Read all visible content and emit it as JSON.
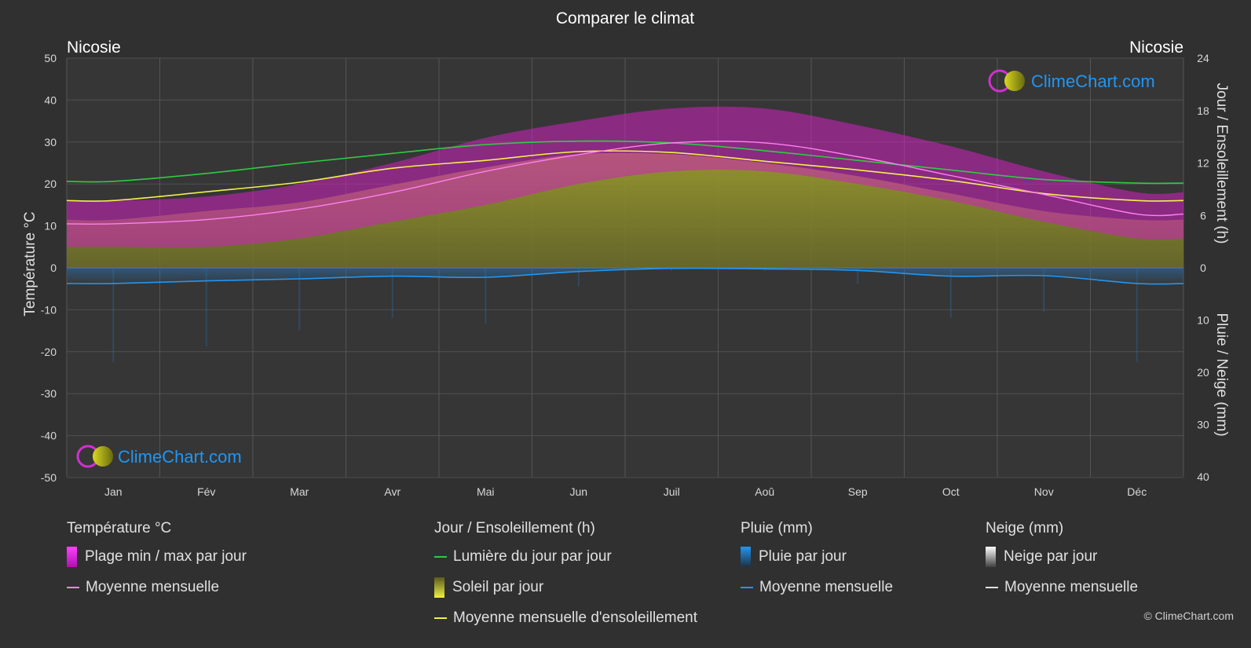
{
  "header": {
    "title": "Comparer le climat",
    "left_location": "Nicosie",
    "right_location": "Nicosie"
  },
  "logo_text": "ClimeChart.com",
  "copyright": "© ClimeChart.com",
  "colors": {
    "background": "#303030",
    "temp_range": "#d020c0",
    "temp_avg": "#ff80f0",
    "daylight": "#2ecc40",
    "sunshine_fill": "#a0a030",
    "sunshine_avg": "#f0f050",
    "rain": "#2a6fa8",
    "rain_avg": "#2196f3",
    "snow": "#e0e0e0",
    "logo_text": "#2196f3"
  },
  "legend": {
    "temperature": {
      "title": "Température °C",
      "items": [
        "Plage min / max par jour",
        "Moyenne mensuelle"
      ]
    },
    "sun": {
      "title": "Jour / Ensoleillement (h)",
      "items": [
        "Lumière du jour par jour",
        "Soleil par jour",
        "Moyenne mensuelle d'ensoleillement"
      ]
    },
    "rain": {
      "title": "Pluie (mm)",
      "items": [
        "Pluie par jour",
        "Moyenne mensuelle"
      ]
    },
    "snow": {
      "title": "Neige (mm)",
      "items": [
        "Neige par jour",
        "Moyenne mensuelle"
      ]
    }
  },
  "chart_data": {
    "type": "area",
    "title": "Comparer le climat",
    "categories": [
      "Jan",
      "Fév",
      "Mar",
      "Avr",
      "Mai",
      "Jun",
      "Juil",
      "Aoû",
      "Sep",
      "Oct",
      "Nov",
      "Déc"
    ],
    "y_left": {
      "label": "Température °C",
      "range": [
        -50,
        50
      ],
      "ticks": [
        50,
        40,
        30,
        20,
        10,
        0,
        -10,
        -20,
        -30,
        -40,
        -50
      ]
    },
    "y_right_top": {
      "label": "Jour / Ensoleillement (h)",
      "range": [
        0,
        24
      ],
      "ticks": [
        24,
        18,
        12,
        6,
        0
      ]
    },
    "y_right_bottom": {
      "label": "Pluie / Neige (mm)",
      "range": [
        0,
        40
      ],
      "ticks": [
        0,
        10,
        20,
        30,
        40
      ]
    },
    "grid": true,
    "series": [
      {
        "name": "Plage min / max par jour",
        "unit": "°C",
        "min": [
          5,
          5,
          7,
          11,
          15,
          20,
          23,
          23,
          20,
          16,
          11,
          7
        ],
        "max": [
          16,
          17,
          20,
          25,
          31,
          35,
          38,
          38,
          34,
          29,
          23,
          18
        ]
      },
      {
        "name": "Moyenne mensuelle",
        "unit": "°C",
        "values": [
          10.5,
          11.5,
          14,
          18,
          23,
          27,
          29.8,
          29.8,
          26.5,
          22,
          17.5,
          12.8
        ]
      },
      {
        "name": "Lumière du jour par jour",
        "unit": "h",
        "values": [
          9.9,
          10.8,
          12.0,
          13.1,
          14.1,
          14.5,
          14.3,
          13.4,
          12.3,
          11.2,
          10.1,
          9.7
        ]
      },
      {
        "name": "Soleil par jour",
        "unit": "h",
        "values": [
          5.5,
          6.5,
          7.5,
          9.5,
          11.5,
          13.0,
          13.0,
          12.0,
          10.5,
          8.5,
          6.5,
          5.5
        ]
      },
      {
        "name": "Moyenne mensuelle d'ensoleillement",
        "unit": "h",
        "values": [
          7.7,
          8.7,
          9.8,
          11.4,
          12.3,
          13.3,
          13.2,
          12.2,
          11.2,
          10.0,
          8.5,
          7.7
        ]
      },
      {
        "name": "Pluie par jour",
        "unit": "mm",
        "values": [
          3.0,
          2.5,
          2.0,
          1.6,
          1.8,
          0.6,
          0.1,
          0.1,
          0.5,
          1.6,
          1.4,
          3.0
        ]
      },
      {
        "name": "Moyenne mensuelle (pluie)",
        "unit": "mm",
        "values": [
          3.0,
          2.5,
          2.1,
          1.6,
          1.8,
          0.7,
          0.1,
          0.2,
          0.5,
          1.6,
          1.5,
          3.0
        ]
      },
      {
        "name": "Moyenne mensuelle (neige)",
        "unit": "mm",
        "values": [
          0,
          0,
          0,
          0,
          0,
          0,
          0,
          0,
          0,
          0,
          0,
          0
        ]
      }
    ]
  }
}
